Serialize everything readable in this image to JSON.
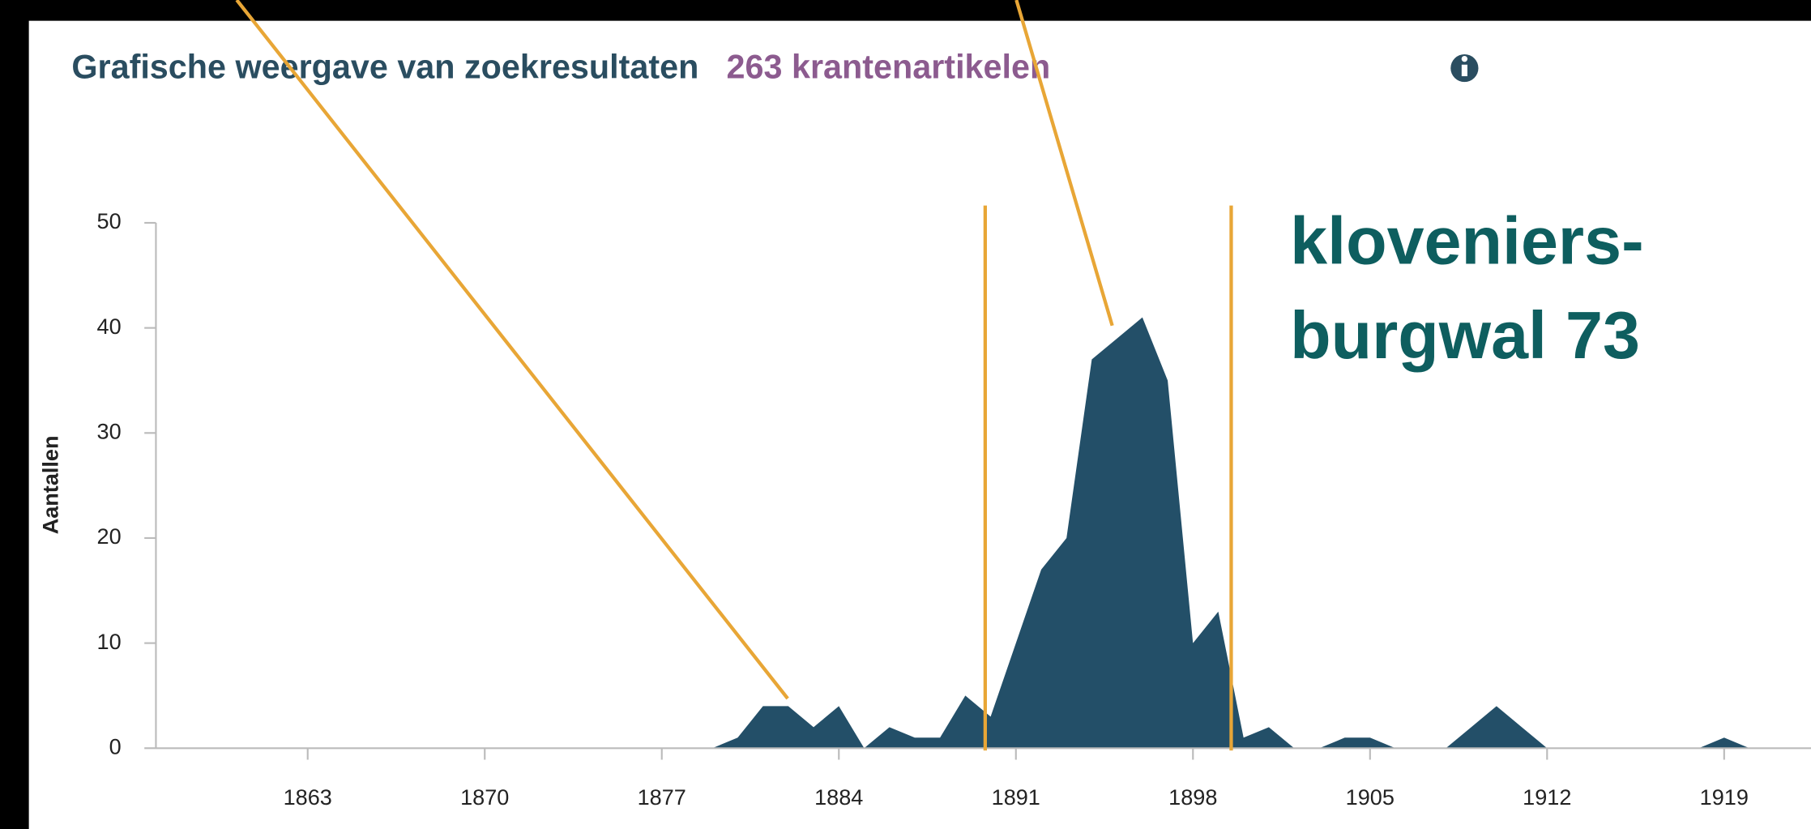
{
  "chart_data": {
    "type": "area",
    "title": "Grafische weergave van zoekresultaten",
    "subtitle": "263 krantenartikelen",
    "y_label": "Aantallen",
    "annotation": [
      "kloveniers-",
      "burgwal 73"
    ],
    "color": "#234f68",
    "x": [
      1857,
      1858,
      1859,
      1860,
      1861,
      1862,
      1863,
      1864,
      1865,
      1866,
      1867,
      1868,
      1869,
      1870,
      1871,
      1872,
      1873,
      1874,
      1875,
      1876,
      1877,
      1878,
      1879,
      1880,
      1881,
      1882,
      1883,
      1884,
      1885,
      1886,
      1887,
      1888,
      1889,
      1890,
      1891,
      1892,
      1893,
      1894,
      1895,
      1896,
      1897,
      1898,
      1899,
      1900,
      1901,
      1902,
      1903,
      1904,
      1905,
      1906,
      1907,
      1908,
      1909,
      1910,
      1911,
      1912,
      1913,
      1914,
      1915,
      1916,
      1917,
      1918,
      1919,
      1920,
      1921,
      1922
    ],
    "values": [
      0,
      0,
      0,
      0,
      0,
      0,
      0,
      0,
      0,
      0,
      0,
      0,
      0,
      0,
      0,
      0,
      0,
      0,
      0,
      0,
      0,
      0,
      0,
      1,
      4,
      4,
      2,
      4,
      0,
      2,
      1,
      1,
      5,
      3,
      10,
      17,
      20,
      37,
      39,
      41,
      35,
      10,
      13,
      1,
      2,
      0,
      0,
      1,
      1,
      0,
      0,
      0,
      2,
      4,
      2,
      0,
      0,
      0,
      0,
      0,
      0,
      0,
      1,
      0,
      0,
      0
    ],
    "xlim": [
      1857,
      1922
    ],
    "ylim": [
      0,
      50
    ],
    "xticks": [
      1863,
      1870,
      1877,
      1884,
      1891,
      1898,
      1905,
      1912,
      1919
    ],
    "yticks": [
      0,
      10,
      20,
      30,
      40,
      50
    ]
  }
}
